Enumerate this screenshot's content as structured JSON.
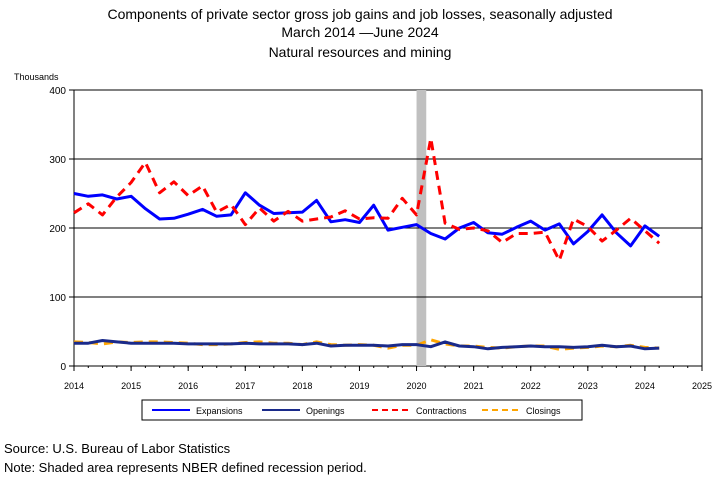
{
  "title_lines": [
    "Components of private sector gross job gains and job losses, seasonally adjusted",
    "March 2014 —June 2024",
    "Natural resources and mining"
  ],
  "footer": {
    "source": "Source: U.S. Bureau of Labor Statistics",
    "note": "Note: Shaded area represents NBER defined recession period."
  },
  "chart_data": {
    "type": "line",
    "title": "Components of private sector gross job gains and job losses, seasonally adjusted",
    "subtitle": "March 2014 —June 2024 / Natural resources and mining",
    "ylabel": "Thousands",
    "xlabel": "",
    "xlim": [
      2014,
      2025
    ],
    "ylim": [
      0,
      400
    ],
    "x_ticks": [
      "2014",
      "2015",
      "2016",
      "2017",
      "2018",
      "2019",
      "2020",
      "2021",
      "2022",
      "2023",
      "2024",
      "2025"
    ],
    "y_ticks": [
      "0",
      "100",
      "200",
      "300",
      "400"
    ],
    "grid": "horizontal",
    "legend_position": "bottom",
    "recession": [
      2020.0,
      2020.17
    ],
    "x": [
      2014.0,
      2014.25,
      2014.5,
      2014.75,
      2015.0,
      2015.25,
      2015.5,
      2015.75,
      2016.0,
      2016.25,
      2016.5,
      2016.75,
      2017.0,
      2017.25,
      2017.5,
      2017.75,
      2018.0,
      2018.25,
      2018.5,
      2018.75,
      2019.0,
      2019.25,
      2019.5,
      2019.75,
      2020.0,
      2020.25,
      2020.5,
      2020.75,
      2021.0,
      2021.25,
      2021.5,
      2021.75,
      2022.0,
      2022.25,
      2022.5,
      2022.75,
      2023.0,
      2023.25,
      2023.5,
      2023.75,
      2024.0,
      2024.25
    ],
    "series": [
      {
        "name": "Expansions",
        "color": "#0000ff",
        "style": "solid",
        "values": [
          250,
          246,
          248,
          242,
          246,
          228,
          213,
          214,
          220,
          227,
          217,
          219,
          251,
          233,
          221,
          222,
          223,
          240,
          209,
          212,
          208,
          233,
          197,
          201,
          205,
          192,
          184,
          200,
          208,
          193,
          191,
          201,
          210,
          197,
          206,
          177,
          195,
          219,
          193,
          174,
          203,
          188
        ]
      },
      {
        "name": "Openings",
        "color": "#1a2a8a",
        "style": "solid",
        "values": [
          33,
          33,
          37,
          35,
          33,
          33,
          33,
          33,
          32,
          32,
          32,
          32,
          33,
          32,
          32,
          32,
          31,
          33,
          29,
          30,
          30,
          30,
          29,
          31,
          31,
          28,
          35,
          29,
          28,
          25,
          27,
          28,
          29,
          28,
          28,
          27,
          28,
          30,
          28,
          29,
          25,
          26
        ]
      },
      {
        "name": "Contractions",
        "color": "#ff0000",
        "style": "dash",
        "values": [
          222,
          235,
          219,
          245,
          266,
          295,
          251,
          267,
          247,
          261,
          223,
          234,
          205,
          229,
          210,
          224,
          210,
          213,
          216,
          225,
          213,
          215,
          214,
          243,
          219,
          330,
          207,
          198,
          200,
          196,
          179,
          192,
          192,
          194,
          153,
          213,
          202,
          181,
          197,
          214,
          196,
          178
        ]
      },
      {
        "name": "Closings",
        "color": "#ffa500",
        "style": "dash",
        "values": [
          35,
          34,
          32,
          35,
          34,
          35,
          35,
          34,
          33,
          31,
          31,
          32,
          34,
          35,
          33,
          33,
          31,
          35,
          31,
          30,
          31,
          30,
          26,
          30,
          30,
          38,
          32,
          29,
          29,
          27,
          26,
          28,
          29,
          29,
          24,
          26,
          27,
          29,
          28,
          30,
          27,
          26
        ]
      }
    ]
  }
}
